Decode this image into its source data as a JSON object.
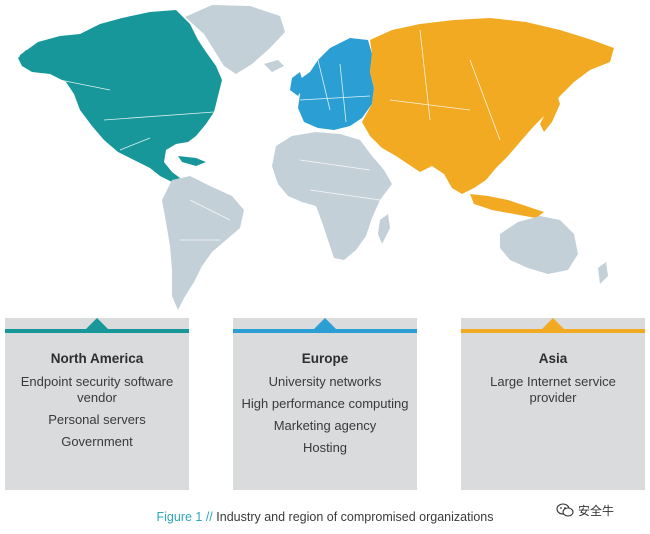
{
  "colors": {
    "north_america": "#18979b",
    "europe": "#2b9fd4",
    "asia": "#f2aa22",
    "other_land": "#c4d0d8",
    "panel_bg": "#d9dbdc"
  },
  "regions": [
    {
      "id": "north-america",
      "title": "North America",
      "color": "#18979b",
      "items": [
        "Endpoint security software vendor",
        "Personal servers",
        "Government"
      ]
    },
    {
      "id": "europe",
      "title": "Europe",
      "color": "#2b9fd4",
      "items": [
        "University networks",
        "High performance computing",
        "Marketing agency",
        "Hosting"
      ]
    },
    {
      "id": "asia",
      "title": "Asia",
      "color": "#f2aa22",
      "items": [
        "Large Internet service provider"
      ]
    }
  ],
  "caption": {
    "figure_label": "Figure 1 //",
    "text": "Industry and region of compromised organizations"
  },
  "watermark": {
    "icon": "wechat-icon",
    "text": "安全牛"
  }
}
